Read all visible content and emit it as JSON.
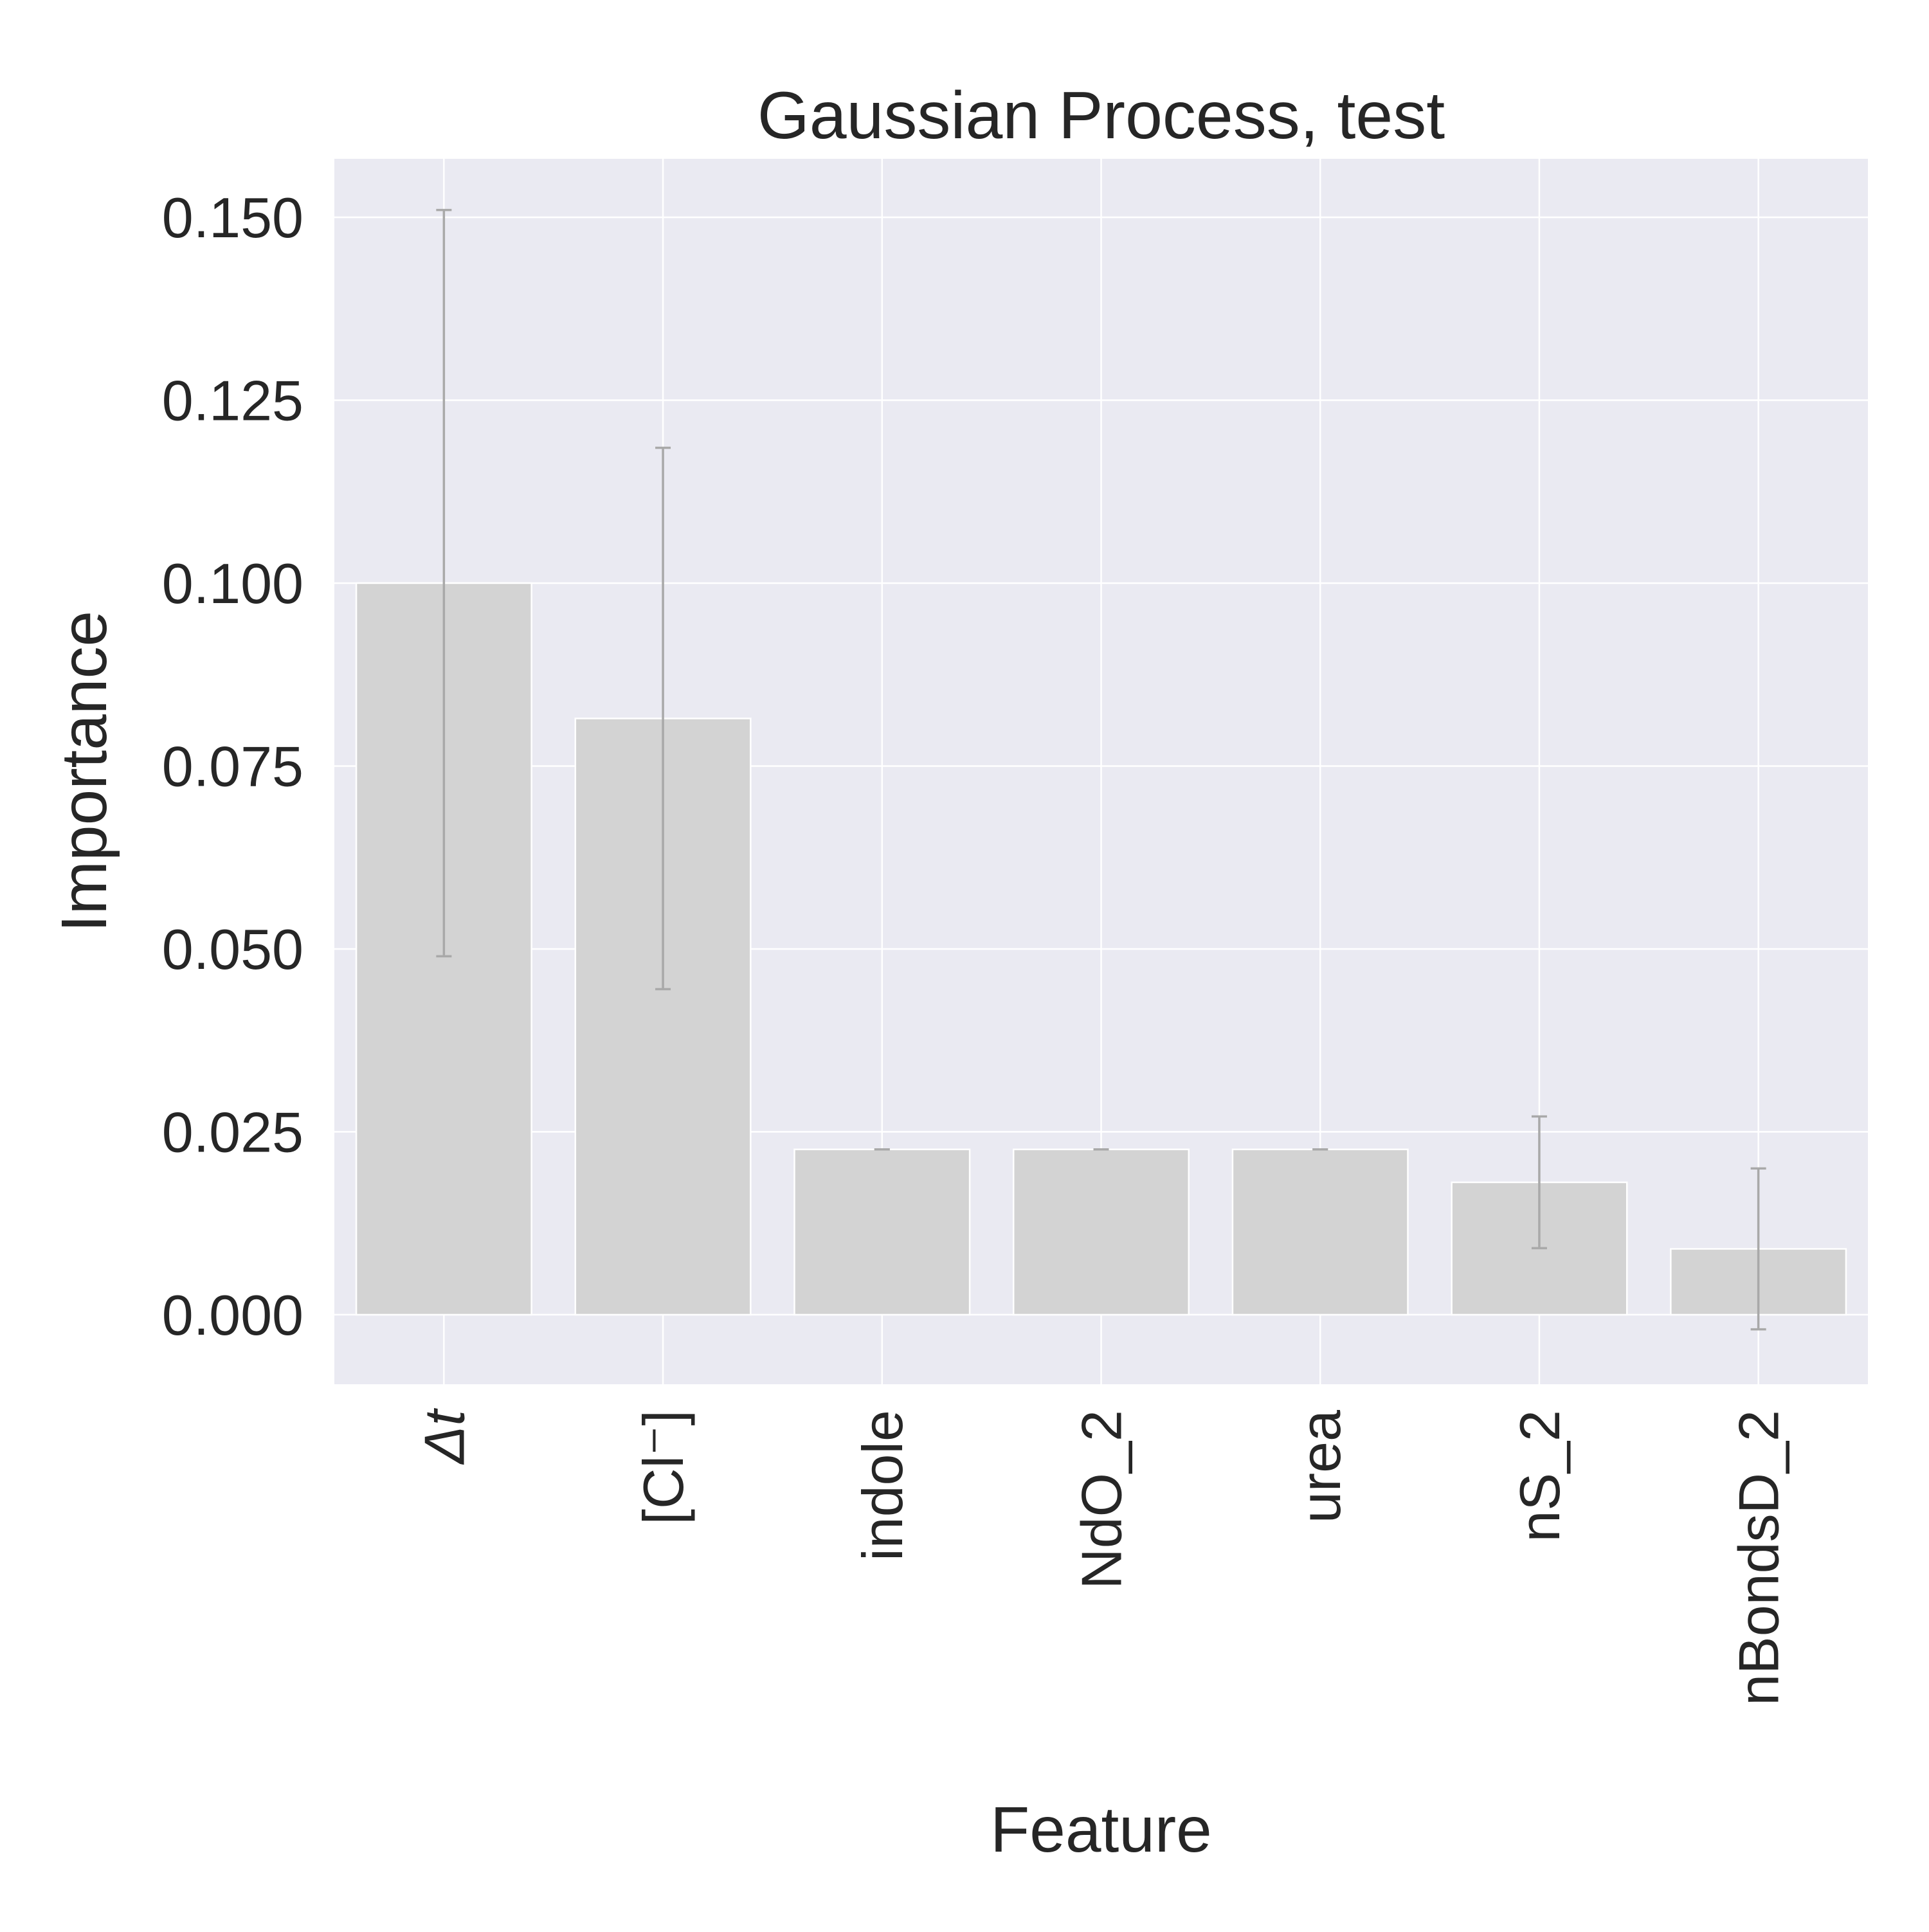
{
  "chart_data": {
    "type": "bar",
    "title": "Gaussian Process, test",
    "xlabel": "Feature",
    "ylabel": "Importance",
    "categories": [
      "Δt",
      "[Cl⁻]",
      "indole",
      "NdO_2",
      "urea",
      "nS_2",
      "nBondsD_2"
    ],
    "series": [
      {
        "values": [
          0.1,
          0.0815,
          0.0226,
          0.0226,
          0.0226,
          0.0181,
          0.009
        ],
        "error": [
          0.051,
          0.037,
          0.0,
          0.0,
          0.0,
          0.009,
          0.011
        ]
      }
    ],
    "yticks": [
      "0.000",
      "0.025",
      "0.050",
      "0.075",
      "0.100",
      "0.125",
      "0.150"
    ],
    "ylim": [
      -0.0095,
      0.158
    ],
    "grid": true,
    "colors": {
      "bar": "#d3d3d3",
      "bar_edge": "#ffffff",
      "error_bar": "#a9a9a9",
      "plot_background": "#eaeaf2",
      "grid": "#ffffff",
      "text": "#262626"
    }
  }
}
